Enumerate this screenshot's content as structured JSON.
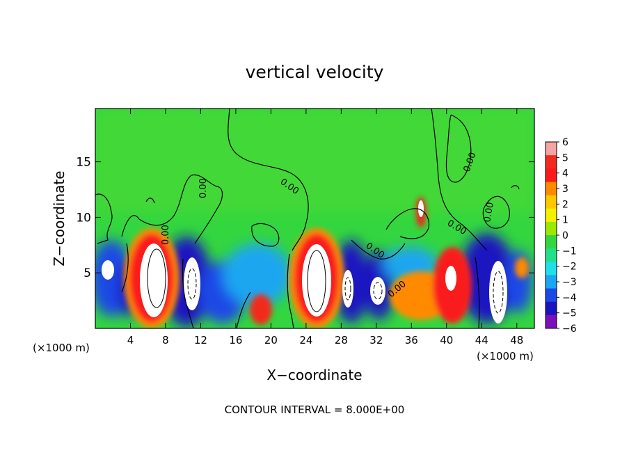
{
  "chart_data": {
    "type": "heatmap",
    "title": "vertical velocity",
    "xlabel": "X−coordinate",
    "ylabel": "Z−coordinate",
    "x_unit_left": "(×1000 m)",
    "x_unit_right": "(×1000 m)",
    "footer": "CONTOUR INTERVAL = 8.000E+00",
    "xlim": [
      0,
      50
    ],
    "ylim": [
      0,
      19.8
    ],
    "x_ticks": [
      4,
      8,
      12,
      16,
      20,
      24,
      28,
      32,
      36,
      40,
      44,
      48
    ],
    "y_ticks": [
      5,
      10,
      15
    ],
    "contour_labels": [
      "0.00",
      "0.00",
      "0.00",
      "0.00",
      "0.00",
      "0.00",
      "0.00",
      "0.00"
    ],
    "colorbar": {
      "ticks": [
        6,
        5,
        4,
        3,
        2,
        1,
        0,
        -1,
        -2,
        -3,
        -4,
        -5,
        -6
      ],
      "tick_labels": [
        "6",
        "5",
        "4",
        "3",
        "2",
        "1",
        "0",
        "−1",
        "−2",
        "−3",
        "−4",
        "−5",
        "−6"
      ],
      "colors": [
        "#f4a4a4",
        "#f22a1e",
        "#fa1a1a",
        "#ff8a00",
        "#fcc800",
        "#f5f000",
        "#9ee800",
        "#33d63f",
        "#22e08a",
        "#1ee0e6",
        "#1aa6f0",
        "#1a4ae6",
        "#1a14c0",
        "#7a10b8"
      ]
    },
    "cells": [
      {
        "x": 6.2,
        "z": 4.6,
        "w": -7.5
      },
      {
        "x": 11.0,
        "z": 3.7,
        "w": -7.0
      },
      {
        "x": 25.0,
        "z": 4.5,
        "w": 7.5
      },
      {
        "x": 29.0,
        "z": 3.6,
        "w": -6.0
      },
      {
        "x": 32.5,
        "z": 3.2,
        "w": -6.0
      },
      {
        "x": 40.0,
        "z": 3.8,
        "w": 6.0
      },
      {
        "x": 46.0,
        "z": 3.4,
        "w": -6.5
      },
      {
        "x": 18.5,
        "z": 1.8,
        "w": 3.5
      },
      {
        "x": 37.0,
        "z": 11.0,
        "w": 5.0
      }
    ]
  }
}
